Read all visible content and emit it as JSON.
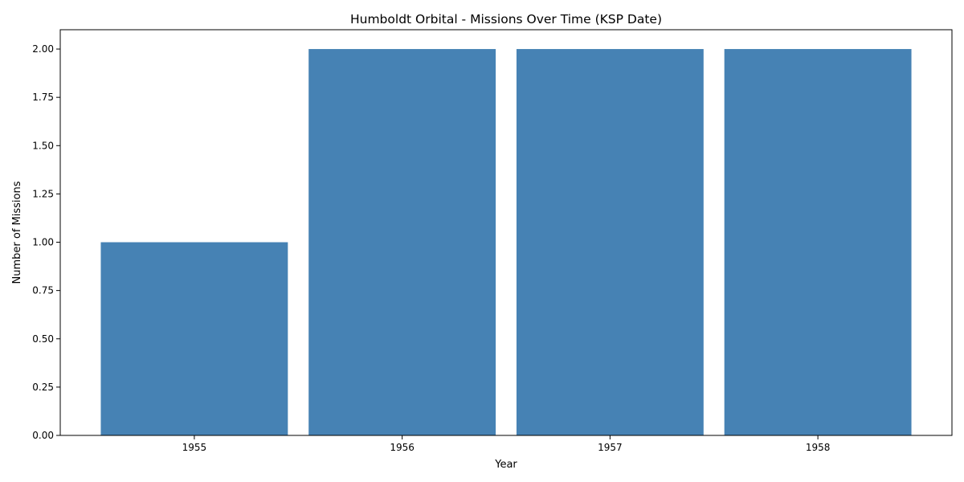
{
  "chart_data": {
    "type": "bar",
    "title": "Humboldt Orbital - Missions Over Time (KSP Date)",
    "xlabel": "Year",
    "ylabel": "Number of Missions",
    "categories": [
      "1955",
      "1956",
      "1957",
      "1958"
    ],
    "values": [
      1,
      2,
      2,
      2
    ],
    "ylim": [
      0,
      2.1
    ],
    "yticks": [
      "0.00",
      "0.25",
      "0.50",
      "0.75",
      "1.00",
      "1.25",
      "1.50",
      "1.75",
      "2.00"
    ],
    "bar_color": "#4682b4",
    "grid": false,
    "legend": "none"
  }
}
